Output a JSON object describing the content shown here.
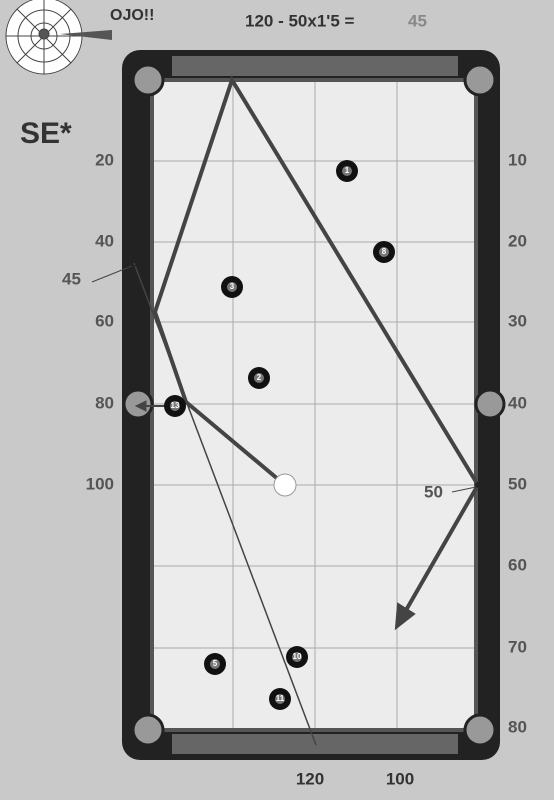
{
  "header": {
    "formula": "120 - 50x1'5 =",
    "result": "45",
    "warning": "OJO!!",
    "system": "SE*"
  },
  "left_labels": [
    "20",
    "40",
    "60",
    "80",
    "100"
  ],
  "left_note": "45",
  "right_labels": [
    "10",
    "20",
    "30",
    "40",
    "50",
    "60",
    "70",
    "80"
  ],
  "right_note": "50",
  "bottom_labels": [
    "120",
    "100"
  ],
  "balls": [
    "1",
    "8",
    "3",
    "2",
    "13",
    "5",
    "10",
    "11"
  ]
}
